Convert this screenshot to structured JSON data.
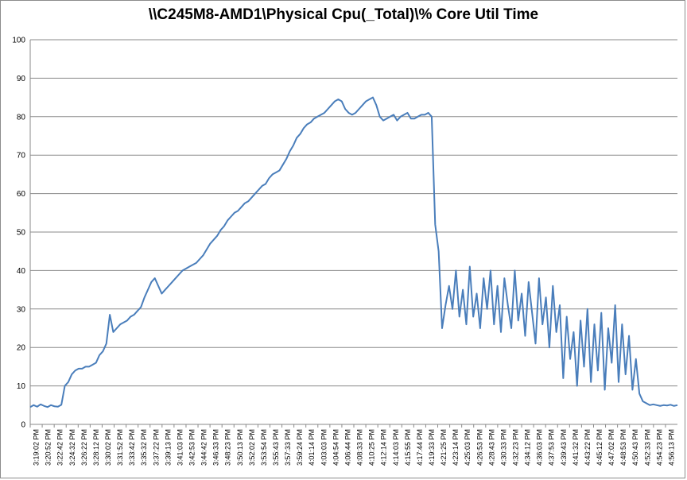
{
  "chart_data": {
    "type": "line",
    "title": "\\\\C245M8-AMD1\\Physical Cpu(_Total)\\% Core Util Time",
    "xlabel": "",
    "ylabel": "",
    "ylim": [
      0,
      100
    ],
    "yticks": [
      0,
      10,
      20,
      30,
      40,
      50,
      60,
      70,
      80,
      90,
      100
    ],
    "grid": "horizontal",
    "legend": "none",
    "line_color": "#4a7ebb",
    "x_tick_labels": [
      "3:19:02 PM",
      "3:20:52 PM",
      "3:22:42 PM",
      "3:24:32 PM",
      "3:26:22 PM",
      "3:28:12 PM",
      "3:30:02 PM",
      "3:31:52 PM",
      "3:33:42 PM",
      "3:35:32 PM",
      "3:37:22 PM",
      "3:39:13 PM",
      "3:41:03 PM",
      "3:42:53 PM",
      "3:44:42 PM",
      "3:46:33 PM",
      "3:48:23 PM",
      "3:50:13 PM",
      "3:52:02 PM",
      "3:53:54 PM",
      "3:55:43 PM",
      "3:57:33 PM",
      "3:59:24 PM",
      "4:01:14 PM",
      "4:03:03 PM",
      "4:04:54 PM",
      "4:06:44 PM",
      "4:08:33 PM",
      "4:10:25 PM",
      "4:12:14 PM",
      "4:14:03 PM",
      "4:15:55 PM",
      "4:17:44 PM",
      "4:19:33 PM",
      "4:21:25 PM",
      "4:23:14 PM",
      "4:25:03 PM",
      "4:26:53 PM",
      "4:28:43 PM",
      "4:30:33 PM",
      "4:32:23 PM",
      "4:34:12 PM",
      "4:36:03 PM",
      "4:37:53 PM",
      "4:39:43 PM",
      "4:41:32 PM",
      "4:43:22 PM",
      "4:45:12 PM",
      "4:47:02 PM",
      "4:48:53 PM",
      "4:50:43 PM",
      "4:52:33 PM",
      "4:54:23 PM",
      "4:56:13 PM"
    ],
    "series": [
      {
        "values": [
          4.5,
          5,
          4.6,
          5.2,
          4.8,
          4.5,
          5,
          4.7,
          4.6,
          5.1,
          10,
          11,
          13,
          14,
          14.5,
          14.5,
          15,
          15,
          15.5,
          16,
          18,
          19,
          21,
          28.5,
          24,
          25,
          26,
          26.5,
          27,
          28,
          28.5,
          29.5,
          30.5,
          33,
          35,
          37,
          38,
          36,
          34,
          35,
          36,
          37,
          38,
          39,
          40,
          40.5,
          41,
          41.5,
          42,
          43,
          44,
          45.5,
          47,
          48,
          49,
          50.5,
          51.5,
          53,
          54,
          55,
          55.5,
          56.5,
          57.5,
          58,
          59,
          60,
          61,
          62,
          62.5,
          64,
          65,
          65.5,
          66,
          67.5,
          69,
          71,
          72.5,
          74.5,
          75.5,
          77,
          78,
          78.5,
          79.5,
          80,
          80.5,
          81,
          82,
          83,
          84,
          84.5,
          84,
          82,
          81,
          80.5,
          81,
          82,
          83,
          84,
          84.5,
          85,
          83,
          80,
          79,
          79.5,
          80,
          80.5,
          79,
          80,
          80.5,
          81,
          79.5,
          79.5,
          80,
          80.5,
          80.5,
          81,
          80,
          52,
          45,
          25,
          31,
          36,
          30,
          40,
          28,
          35,
          26,
          41,
          28,
          34,
          25,
          38,
          30,
          40,
          26,
          36,
          24,
          38,
          31,
          25,
          40,
          27,
          34,
          23,
          37,
          29,
          21,
          38,
          26,
          33,
          20,
          36,
          24,
          31,
          12,
          28,
          17,
          24,
          10,
          27,
          15,
          30,
          11,
          26,
          14,
          29,
          9,
          25,
          16,
          31,
          11,
          26,
          13,
          23,
          9,
          17,
          8,
          6,
          5.5,
          5,
          5.2,
          5,
          4.8,
          5,
          4.9,
          5.1,
          4.8,
          5
        ]
      }
    ]
  }
}
